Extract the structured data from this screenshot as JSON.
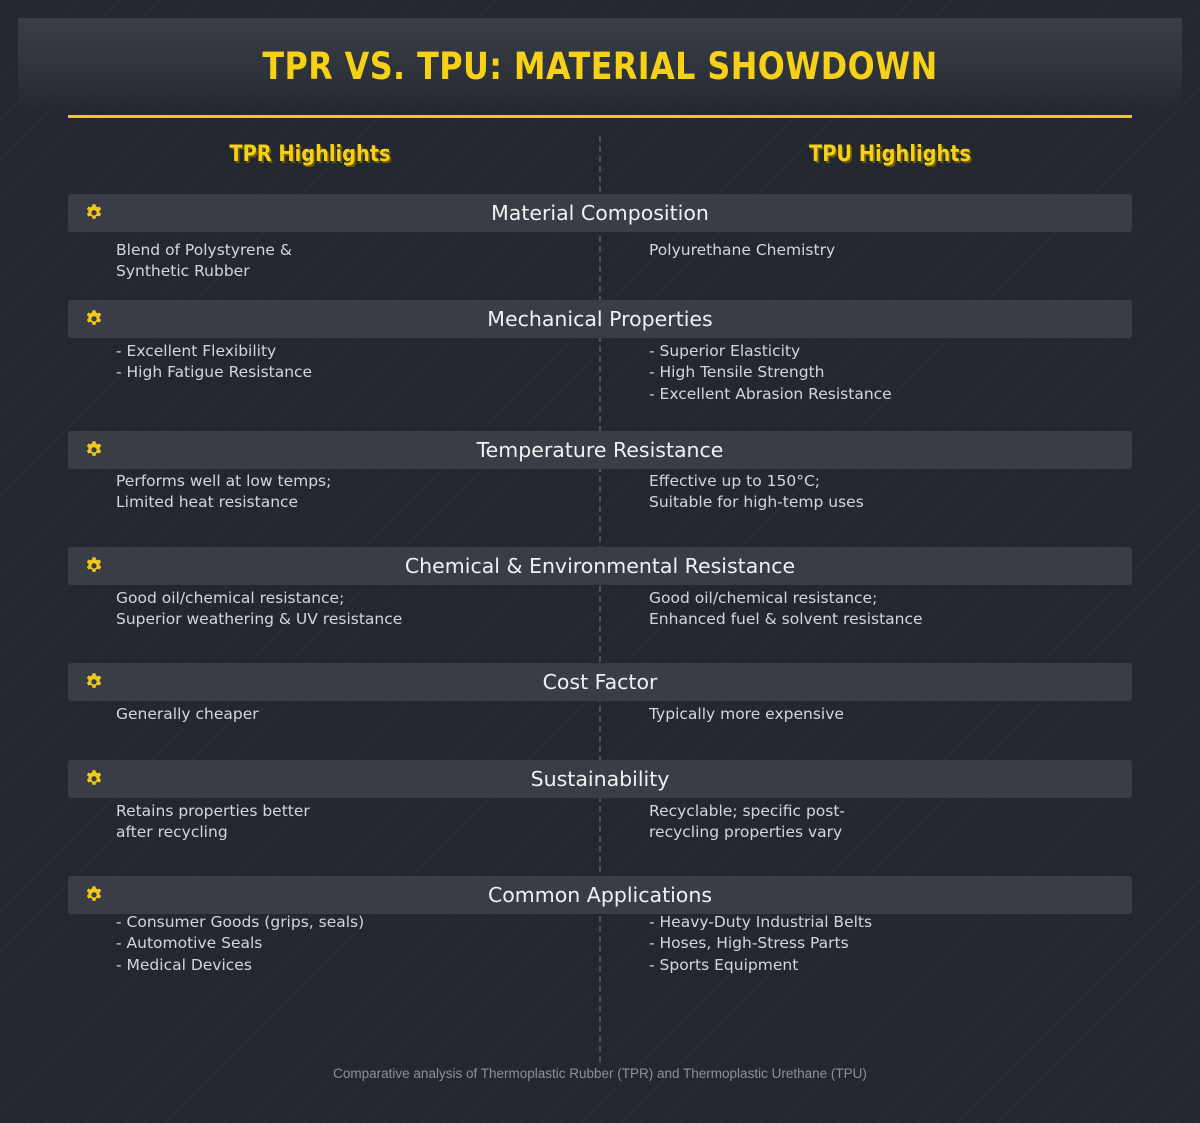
{
  "title": "TPR VS. TPU: MATERIAL SHOWDOWN",
  "columns": {
    "left": "TPR Highlights",
    "right": "TPU Highlights"
  },
  "icon": "gear-icon",
  "accent_color": "#f7d117",
  "categories": [
    {
      "title": "Material Composition",
      "left": [
        "Blend of Polystyrene &",
        "Synthetic Rubber"
      ],
      "right": [
        "Polyurethane Chemistry"
      ]
    },
    {
      "title": "Mechanical Properties",
      "left": [
        "- Excellent Flexibility",
        "- High Fatigue Resistance"
      ],
      "right": [
        "- Superior Elasticity",
        "- High Tensile Strength",
        "- Excellent Abrasion Resistance"
      ]
    },
    {
      "title": "Temperature Resistance",
      "left": [
        "Performs well at low temps;",
        "Limited heat resistance"
      ],
      "right": [
        "Effective up to 150°C;",
        "Suitable for high-temp uses"
      ]
    },
    {
      "title": "Chemical & Environmental Resistance",
      "left": [
        "Good oil/chemical resistance;",
        "Superior weathering & UV resistance"
      ],
      "right": [
        "Good oil/chemical resistance;",
        "Enhanced fuel & solvent resistance"
      ]
    },
    {
      "title": "Cost Factor",
      "left": [
        "Generally cheaper"
      ],
      "right": [
        "Typically more expensive"
      ]
    },
    {
      "title": "Sustainability",
      "left": [
        "Retains properties better",
        "after recycling"
      ],
      "right": [
        "Recyclable; specific post-",
        "recycling properties vary"
      ]
    },
    {
      "title": "Common Applications",
      "left": [
        "- Consumer Goods (grips, seals)",
        "- Automotive Seals",
        "- Medical Devices"
      ],
      "right": [
        "- Heavy-Duty Industrial Belts",
        "- Hoses, High-Stress Parts",
        "- Sports Equipment"
      ]
    }
  ],
  "footer": "Comparative analysis of Thermoplastic Rubber (TPR) and Thermoplastic Urethane (TPU)"
}
